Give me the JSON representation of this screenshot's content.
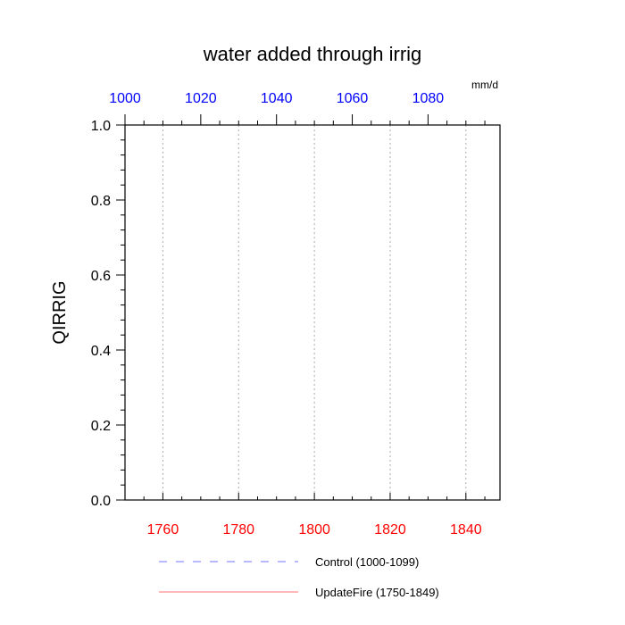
{
  "chart_data": {
    "type": "line",
    "title": "water added through irrig",
    "ylabel": "QIRRIG",
    "units": "mm/d",
    "ylim": [
      0.0,
      1.0
    ],
    "y_ticks": [
      "0.0",
      "0.2",
      "0.4",
      "0.6",
      "0.8",
      "1.0"
    ],
    "y_minor_step": 0.04,
    "x_bottom": {
      "lim": [
        1750,
        1849
      ],
      "ticks": [
        1760,
        1780,
        1800,
        1820,
        1840
      ],
      "minor_step": 5,
      "color": "#ff0000"
    },
    "x_top": {
      "lim": [
        1000,
        1099
      ],
      "ticks": [
        1000,
        1020,
        1040,
        1060,
        1080
      ],
      "minor_step": 5,
      "color": "#0000ff"
    },
    "grid": "vertical-dotted",
    "series": [
      {
        "name": "Control (1000-1099)",
        "axis": "top",
        "color": "#0000ff",
        "dash": true,
        "values": []
      },
      {
        "name": "UpdateFire (1750-1849)",
        "axis": "bottom",
        "color": "#ff0000",
        "dash": false,
        "values": []
      }
    ],
    "legend_position": "bottom"
  }
}
